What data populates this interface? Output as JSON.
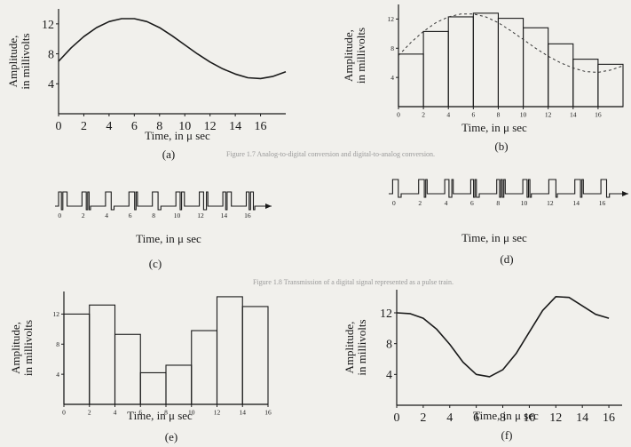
{
  "figure": {
    "amplitude_label_line1": "Amplitude,",
    "amplitude_label_line2": "in millivolts",
    "time_label": "Time, in μ sec",
    "bleed_through": [
      "Figure 1.7  Analog-to-digital conversion and digital-to-analog conversion.",
      "Figure 1.8  Transmission of a digital signal represented as a pulse train."
    ]
  },
  "chart_data": [
    {
      "panel": "(a)",
      "type": "line",
      "title": "",
      "xlabel": "Time, in μ sec",
      "ylabel": "Amplitude, in millivolts",
      "x_ticks": [
        0,
        2,
        4,
        6,
        8,
        10,
        12,
        14,
        16
      ],
      "y_ticks": [
        4,
        8,
        12
      ],
      "xlim": [
        0,
        18
      ],
      "ylim": [
        0,
        14
      ],
      "x": [
        0,
        1,
        2,
        3,
        4,
        5,
        6,
        7,
        8,
        9,
        10,
        11,
        12,
        13,
        14,
        15,
        16,
        17,
        18
      ],
      "values": [
        7.0,
        8.8,
        10.3,
        11.5,
        12.3,
        12.7,
        12.7,
        12.3,
        11.5,
        10.4,
        9.2,
        8.0,
        6.9,
        6.0,
        5.3,
        4.8,
        4.7,
        5.0,
        5.6
      ]
    },
    {
      "panel": "(b)",
      "type": "bar",
      "title": "",
      "xlabel": "Time, in μ sec",
      "ylabel": "Amplitude, in millivolts",
      "x_ticks": [
        0,
        2,
        4,
        6,
        8,
        10,
        12,
        14,
        16
      ],
      "y_ticks": [
        4,
        8,
        12
      ],
      "xlim": [
        0,
        18
      ],
      "ylim": [
        0,
        14
      ],
      "sample_times": [
        0,
        2,
        4,
        6,
        8,
        10,
        12,
        14,
        16
      ],
      "values": [
        7.2,
        10.3,
        12.3,
        12.8,
        12.1,
        10.8,
        8.6,
        6.5,
        5.8
      ]
    },
    {
      "panel": "(c)",
      "type": "pulse_train",
      "title": "",
      "xlabel": "Time, in μ sec",
      "x_ticks": [
        0,
        2,
        4,
        6,
        8,
        10,
        12,
        14,
        16
      ],
      "values": [
        7,
        10,
        12,
        13,
        12,
        11,
        9,
        7,
        6
      ]
    },
    {
      "panel": "(d)",
      "type": "pulse_train",
      "title": "",
      "xlabel": "Time, in μ sec",
      "x_ticks": [
        0,
        2,
        4,
        6,
        8,
        10,
        12,
        14,
        16
      ],
      "values": [
        12,
        13,
        9,
        4,
        5,
        10,
        14,
        13,
        12
      ]
    },
    {
      "panel": "(e)",
      "type": "bar",
      "title": "",
      "xlabel": "Time, in μ sec",
      "ylabel": "Amplitude, in millivolts",
      "x_ticks": [
        0,
        2,
        4,
        6,
        8,
        10,
        12,
        14,
        16
      ],
      "y_ticks": [
        4,
        8,
        12
      ],
      "xlim": [
        0,
        16
      ],
      "ylim": [
        0,
        15
      ],
      "sample_times": [
        0,
        2,
        4,
        6,
        8,
        10,
        12,
        14
      ],
      "values": [
        12,
        13.2,
        9.3,
        4.2,
        5.2,
        9.8,
        14.3,
        13
      ]
    },
    {
      "panel": "(f)",
      "type": "line",
      "title": "",
      "xlabel": "Time, in μ sec",
      "ylabel": "Amplitude, in millivolts",
      "x_ticks": [
        0,
        2,
        4,
        6,
        8,
        10,
        12,
        14,
        16
      ],
      "y_ticks": [
        4,
        8,
        12
      ],
      "xlim": [
        0,
        17
      ],
      "ylim": [
        0,
        15
      ],
      "x": [
        0,
        1,
        2,
        3,
        4,
        5,
        6,
        7,
        8,
        9,
        10,
        11,
        12,
        13,
        14,
        15,
        16
      ],
      "values": [
        12,
        11.9,
        11.3,
        9.9,
        7.9,
        5.6,
        4.0,
        3.7,
        4.6,
        6.7,
        9.5,
        12.3,
        14.1,
        14.0,
        12.9,
        11.8,
        11.3
      ]
    }
  ]
}
